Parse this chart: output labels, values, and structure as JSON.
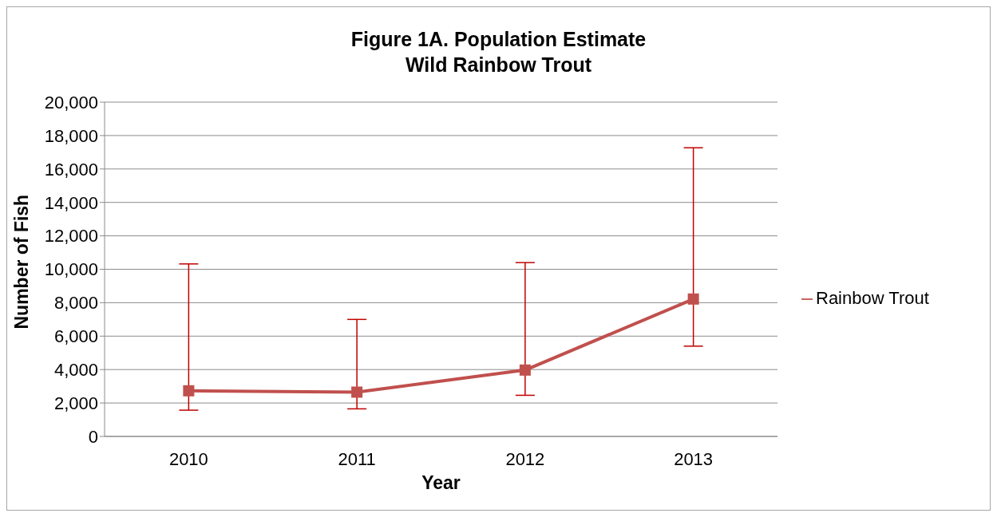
{
  "chart_data": {
    "type": "line",
    "title": "Figure 1A.  Population Estimate\nWild Rainbow Trout",
    "xlabel": "Year",
    "ylabel": "Number of Fish",
    "categories": [
      "2010",
      "2011",
      "2012",
      "2013"
    ],
    "series": [
      {
        "name": "Rainbow Trout",
        "color": "#c0504d",
        "values": [
          2730,
          2650,
          3970,
          8220
        ],
        "errors": [
          [
            1570,
            10320
          ],
          [
            1650,
            7000
          ],
          [
            2460,
            10400
          ],
          [
            5400,
            17270
          ]
        ]
      }
    ],
    "ylim": [
      0,
      20000
    ],
    "yticks": [
      0,
      {
        "value": 2000,
        "label": "2,000"
      },
      {
        "value": 4000,
        "label": "4,000"
      },
      {
        "value": 6000,
        "label": "6,000"
      },
      {
        "value": 8000,
        "label": "8,000"
      },
      {
        "value": 10000,
        "label": "10,000"
      },
      {
        "value": 12000,
        "label": "12,000"
      },
      {
        "value": 14000,
        "label": "14,000"
      },
      {
        "value": 16000,
        "label": "16,000"
      },
      {
        "value": 18000,
        "label": "18,000"
      },
      {
        "value": 20000,
        "label": "20,000"
      }
    ],
    "grid": "y",
    "legend": "right",
    "marker": "square",
    "line_style": "solid"
  }
}
